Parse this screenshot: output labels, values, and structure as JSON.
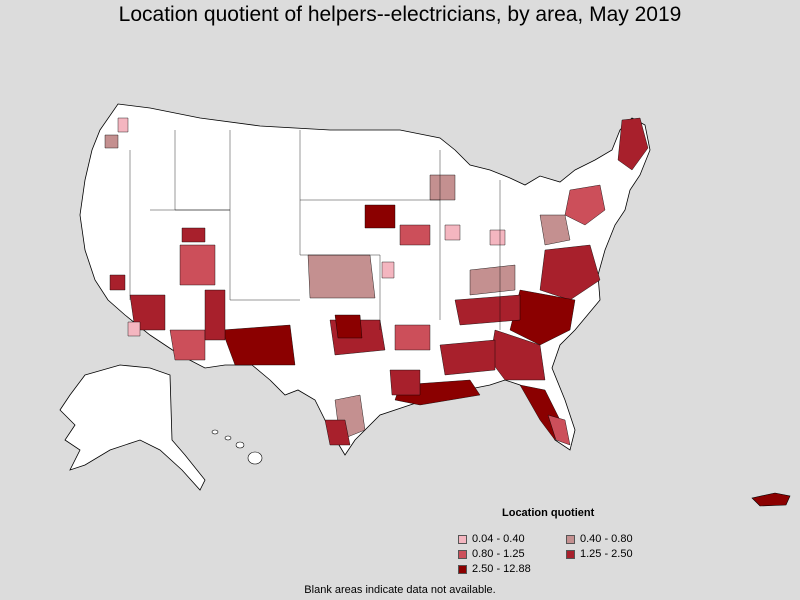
{
  "title": "Location quotient of helpers--electricians, by area, May 2019",
  "legend": {
    "title": "Location quotient",
    "items": [
      {
        "label": "0.04 - 0.40",
        "color": "#f4b6c0"
      },
      {
        "label": "0.40 - 0.80",
        "color": "#c49090"
      },
      {
        "label": "0.80 - 1.25",
        "color": "#cc4f5a"
      },
      {
        "label": "1.25 - 2.50",
        "color": "#a8202c"
      },
      {
        "label": "2.50 - 12.88",
        "color": "#8b0000"
      }
    ]
  },
  "footnote": "Blank areas indicate data not available.",
  "colors": {
    "background": "#dcdcdc",
    "land": "#ffffff",
    "border": "#000000"
  }
}
